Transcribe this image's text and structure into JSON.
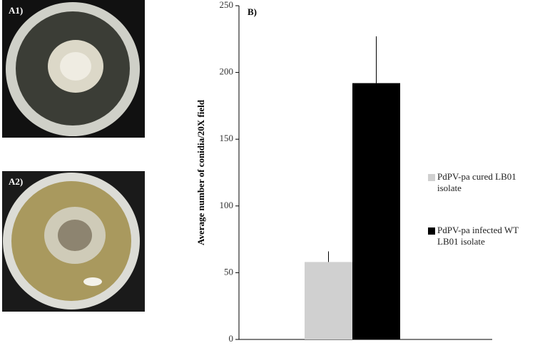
{
  "photos": [
    {
      "label": "A1)"
    },
    {
      "label": "A2)"
    }
  ],
  "chart_data": {
    "type": "bar",
    "panel_label": "B)",
    "y_label": "Average number of conidia/20X field",
    "categories": [
      null
    ],
    "series": [
      {
        "name": "PdPV-pa cured LB01 isolate",
        "color": "#d0d0d0",
        "values": [
          58
        ],
        "errors": [
          8
        ]
      },
      {
        "name": "PdPV-pa infected WT LB01 isolate",
        "color": "#000000",
        "values": [
          192
        ],
        "errors": [
          35
        ]
      }
    ],
    "ylim": [
      0,
      250
    ],
    "yticks": [
      0,
      50,
      100,
      150,
      200,
      250
    ],
    "grid": false,
    "legend": "right"
  }
}
